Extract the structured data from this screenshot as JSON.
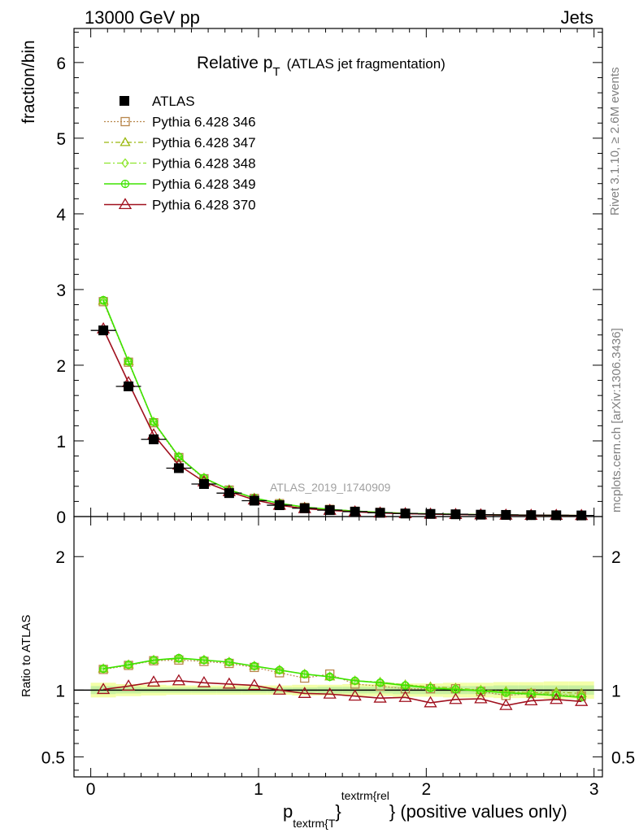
{
  "header": {
    "energy": "13000 GeV pp",
    "process": "Jets"
  },
  "side_labels": {
    "rivet": "Rivet 3.1.10, ≥ 2.6M events",
    "mcplots": "mcplots.cern.ch [arXiv:1306.3436]"
  },
  "watermark": "ATLAS_2019_I1740909",
  "chart_data": [
    {
      "type": "line",
      "title_main": "Relative p",
      "title_sub": "T",
      "title_extra": "(ATLAS jet fragmentation)",
      "ylabel": "fraction/bin",
      "xlim": [
        -0.1,
        3.05
      ],
      "ylim": [
        0,
        6.45
      ],
      "yticks": [
        0,
        1,
        2,
        3,
        4,
        5,
        6
      ],
      "ytick_labels": [
        "0",
        "1",
        "2",
        "3",
        "4",
        "5",
        "6"
      ],
      "x": [
        0.075,
        0.225,
        0.375,
        0.525,
        0.675,
        0.825,
        0.975,
        1.125,
        1.275,
        1.425,
        1.575,
        1.725,
        1.875,
        2.025,
        2.175,
        2.325,
        2.475,
        2.625,
        2.775,
        2.925
      ],
      "data": {
        "name": "ATLAS",
        "values": [
          2.46,
          1.72,
          1.02,
          0.64,
          0.43,
          0.31,
          0.21,
          0.15,
          0.11,
          0.085,
          0.065,
          0.05,
          0.04,
          0.035,
          0.03,
          0.025,
          0.022,
          0.019,
          0.017,
          0.015
        ],
        "errors": [
          0.06,
          0.04,
          0.03,
          0.02,
          0.015,
          0.01,
          0.008,
          0.006,
          0.005,
          0.004,
          0.003,
          0.003,
          0.003,
          0.002,
          0.002,
          0.002,
          0.002,
          0.002,
          0.002,
          0.002
        ]
      },
      "series": [
        {
          "name": "Pythia 6.428 346",
          "color": "#b8864b",
          "dash": "2,2",
          "marker": "square",
          "values": [
            2.84,
            2.04,
            1.24,
            0.78,
            0.5,
            0.35,
            0.24,
            0.17,
            0.12,
            0.095,
            0.07,
            0.055,
            0.042,
            0.036,
            0.031,
            0.025,
            0.021,
            0.018,
            0.016,
            0.014
          ]
        },
        {
          "name": "Pythia 6.428 347",
          "color": "#9ab80d",
          "dash": "6,3,2,3",
          "marker": "triangle",
          "values": [
            2.85,
            2.05,
            1.25,
            0.79,
            0.51,
            0.355,
            0.245,
            0.175,
            0.125,
            0.095,
            0.073,
            0.057,
            0.043,
            0.036,
            0.031,
            0.025,
            0.022,
            0.019,
            0.017,
            0.015
          ]
        },
        {
          "name": "Pythia 6.428 348",
          "color": "#8ee62e",
          "dash": "8,3,2,3",
          "marker": "diamond",
          "values": [
            2.85,
            2.05,
            1.25,
            0.79,
            0.51,
            0.355,
            0.245,
            0.175,
            0.125,
            0.095,
            0.072,
            0.056,
            0.042,
            0.036,
            0.031,
            0.025,
            0.021,
            0.018,
            0.016,
            0.014
          ]
        },
        {
          "name": "Pythia 6.428 349",
          "color": "#3ee400",
          "dash": "",
          "marker": "circleplus",
          "values": [
            2.86,
            2.05,
            1.25,
            0.79,
            0.51,
            0.355,
            0.245,
            0.175,
            0.125,
            0.095,
            0.072,
            0.056,
            0.042,
            0.036,
            0.031,
            0.025,
            0.021,
            0.018,
            0.016,
            0.014
          ]
        },
        {
          "name": "Pythia 6.428 370",
          "color": "#a0101e",
          "dash": "",
          "marker": "triangle",
          "values": [
            2.48,
            1.77,
            1.08,
            0.68,
            0.46,
            0.33,
            0.22,
            0.15,
            0.105,
            0.082,
            0.062,
            0.047,
            0.038,
            0.032,
            0.028,
            0.023,
            0.019,
            0.017,
            0.016,
            0.014
          ]
        }
      ]
    },
    {
      "type": "line",
      "ylabel": "Ratio to ATLAS",
      "xlabel_main": "p",
      "xlabel_sub": "textrm{T",
      "xlabel_brace": "}",
      "xlabel_sup": "textrm{rel",
      "xlabel_rest": "} (positive values only)",
      "xlim": [
        -0.1,
        3.05
      ],
      "ylim": [
        0.35,
        2.3
      ],
      "yticks": [
        0.5,
        1,
        2
      ],
      "ytick_labels": [
        "0.5",
        "1",
        "2"
      ],
      "xticks": [
        0,
        1,
        2,
        3
      ],
      "xtick_labels": [
        "0",
        "1",
        "2",
        "3"
      ],
      "x": [
        0.075,
        0.225,
        0.375,
        0.525,
        0.675,
        0.825,
        0.975,
        1.125,
        1.275,
        1.425,
        1.575,
        1.725,
        1.875,
        2.025,
        2.175,
        2.325,
        2.475,
        2.625,
        2.775,
        2.925
      ],
      "band_outer": [
        0.055,
        0.045,
        0.04,
        0.035,
        0.035,
        0.035,
        0.035,
        0.035,
        0.04,
        0.04,
        0.045,
        0.045,
        0.05,
        0.05,
        0.055,
        0.055,
        0.06,
        0.06,
        0.065,
        0.065
      ],
      "band_inner": [
        0.03,
        0.025,
        0.02,
        0.02,
        0.02,
        0.02,
        0.02,
        0.02,
        0.02,
        0.025,
        0.025,
        0.025,
        0.03,
        0.03,
        0.03,
        0.03,
        0.035,
        0.035,
        0.035,
        0.035
      ],
      "series": [
        {
          "name": "Pythia 6.428 346",
          "color": "#b8864b",
          "dash": "2,2",
          "marker": "square",
          "values": [
            1.155,
            1.185,
            1.22,
            1.225,
            1.215,
            1.2,
            1.17,
            1.13,
            1.09,
            1.12,
            1.045,
            1.03,
            1.01,
            1.01,
            1.01,
            0.99,
            0.96,
            0.975,
            0.965,
            0.955
          ]
        },
        {
          "name": "Pythia 6.428 347",
          "color": "#9ab80d",
          "dash": "6,3,2,3",
          "marker": "triangle",
          "values": [
            1.16,
            1.19,
            1.225,
            1.235,
            1.225,
            1.21,
            1.18,
            1.15,
            1.12,
            1.1,
            1.07,
            1.06,
            1.04,
            1.025,
            1.015,
            1.0,
            0.99,
            0.98,
            0.985,
            0.975
          ]
        },
        {
          "name": "Pythia 6.428 348",
          "color": "#8ee62e",
          "dash": "8,3,2,3",
          "marker": "diamond",
          "values": [
            1.16,
            1.19,
            1.225,
            1.235,
            1.225,
            1.21,
            1.18,
            1.15,
            1.12,
            1.1,
            1.07,
            1.06,
            1.04,
            1.02,
            1.01,
            1.0,
            0.985,
            0.975,
            0.975,
            0.955
          ]
        },
        {
          "name": "Pythia 6.428 349",
          "color": "#3ee400",
          "dash": "",
          "marker": "circleplus",
          "values": [
            1.16,
            1.19,
            1.225,
            1.24,
            1.225,
            1.21,
            1.18,
            1.15,
            1.12,
            1.1,
            1.07,
            1.055,
            1.035,
            1.015,
            1.005,
            0.995,
            0.98,
            0.97,
            0.96,
            0.945
          ]
        },
        {
          "name": "Pythia 6.428 370",
          "color": "#a0101e",
          "dash": "",
          "marker": "triangle",
          "values": [
            1.005,
            1.03,
            1.06,
            1.07,
            1.055,
            1.045,
            1.035,
            1.0,
            0.975,
            0.97,
            0.955,
            0.94,
            0.945,
            0.905,
            0.93,
            0.935,
            0.885,
            0.92,
            0.93,
            0.915
          ]
        }
      ]
    }
  ]
}
